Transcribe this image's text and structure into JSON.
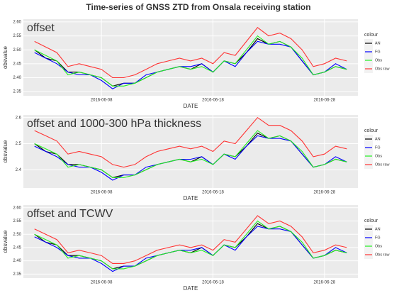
{
  "title": "Time-series of GNSS ZTD from Onsala receiving station",
  "chart_data": [
    {
      "type": "line",
      "annotation": "offset",
      "x_label": "DATE",
      "y_label": "obsvalue",
      "legend_title": "colour",
      "grid": true,
      "x": [
        "2016-06-02",
        "2016-06-03",
        "2016-06-04",
        "2016-06-05",
        "2016-06-06",
        "2016-06-07",
        "2016-06-08",
        "2016-06-09",
        "2016-06-10",
        "2016-06-11",
        "2016-06-12",
        "2016-06-13",
        "2016-06-14",
        "2016-06-15",
        "2016-06-16",
        "2016-06-17",
        "2016-06-18",
        "2016-06-19",
        "2016-06-20",
        "2016-06-21",
        "2016-06-22",
        "2016-06-23",
        "2016-06-24",
        "2016-06-25",
        "2016-06-26",
        "2016-06-27",
        "2016-06-28",
        "2016-06-29",
        "2016-06-30"
      ],
      "xlim": [
        "2016-06-01",
        "2016-07-01"
      ],
      "xticks": [
        "2016-06-08",
        "2016-06-18",
        "2016-06-28"
      ],
      "ylim": [
        2.335,
        2.61
      ],
      "yticks": [
        2.35,
        {
          "value": 2.4,
          "label": "2.40"
        },
        2.45,
        {
          "value": 2.5,
          "label": "2.50"
        },
        2.55,
        {
          "value": 2.6,
          "label": "2.60"
        }
      ],
      "series": [
        {
          "name": "AN",
          "color": "#000000",
          "values": [
            2.5,
            2.47,
            2.46,
            2.42,
            2.42,
            2.41,
            2.4,
            2.37,
            2.38,
            2.38,
            2.4,
            2.42,
            2.43,
            2.44,
            2.43,
            2.45,
            2.42,
            2.46,
            2.45,
            2.49,
            2.54,
            2.52,
            2.53,
            2.51,
            2.46,
            2.41,
            2.42,
            2.44,
            2.43
          ]
        },
        {
          "name": "FG",
          "color": "#0000ff",
          "values": [
            2.49,
            2.47,
            2.45,
            2.42,
            2.41,
            2.41,
            2.39,
            2.36,
            2.38,
            2.38,
            2.41,
            2.42,
            2.43,
            2.44,
            2.44,
            2.45,
            2.42,
            2.46,
            2.44,
            2.49,
            2.53,
            2.52,
            2.52,
            2.51,
            2.46,
            2.41,
            2.42,
            2.45,
            2.43
          ]
        },
        {
          "name": "Obs",
          "color": "#22ee22",
          "values": [
            2.5,
            2.48,
            2.46,
            2.41,
            2.42,
            2.41,
            2.4,
            2.37,
            2.37,
            2.38,
            2.4,
            2.42,
            2.43,
            2.44,
            2.43,
            2.44,
            2.42,
            2.46,
            2.45,
            2.5,
            2.55,
            2.52,
            2.53,
            2.51,
            2.47,
            2.41,
            2.42,
            2.44,
            2.43
          ]
        },
        {
          "name": "Obs raw",
          "color": "#ff3333",
          "values": [
            2.53,
            2.51,
            2.49,
            2.44,
            2.45,
            2.44,
            2.43,
            2.4,
            2.4,
            2.41,
            2.43,
            2.45,
            2.46,
            2.47,
            2.46,
            2.47,
            2.45,
            2.49,
            2.48,
            2.53,
            2.58,
            2.55,
            2.56,
            2.54,
            2.5,
            2.44,
            2.45,
            2.47,
            2.46
          ]
        }
      ]
    },
    {
      "type": "line",
      "annotation": "offset  and 1000-300 hPa thickness",
      "x_label": "DATE",
      "y_label": "obsvalue",
      "legend_title": "colour",
      "grid": true,
      "x": [
        "2016-06-02",
        "2016-06-03",
        "2016-06-04",
        "2016-06-05",
        "2016-06-06",
        "2016-06-07",
        "2016-06-08",
        "2016-06-09",
        "2016-06-10",
        "2016-06-11",
        "2016-06-12",
        "2016-06-13",
        "2016-06-14",
        "2016-06-15",
        "2016-06-16",
        "2016-06-17",
        "2016-06-18",
        "2016-06-19",
        "2016-06-20",
        "2016-06-21",
        "2016-06-22",
        "2016-06-23",
        "2016-06-24",
        "2016-06-25",
        "2016-06-26",
        "2016-06-27",
        "2016-06-28",
        "2016-06-29",
        "2016-06-30"
      ],
      "xlim": [
        "2016-06-01",
        "2016-07-01"
      ],
      "xticks": [
        "2016-06-08",
        "2016-06-18",
        "2016-06-28"
      ],
      "ylim": [
        2.33,
        2.61
      ],
      "yticks": [
        2.4,
        2.5,
        2.6
      ],
      "series": [
        {
          "name": "AN",
          "color": "#000000",
          "values": [
            2.5,
            2.47,
            2.46,
            2.42,
            2.42,
            2.41,
            2.4,
            2.37,
            2.38,
            2.38,
            2.4,
            2.42,
            2.43,
            2.44,
            2.43,
            2.45,
            2.42,
            2.46,
            2.45,
            2.49,
            2.54,
            2.52,
            2.53,
            2.51,
            2.46,
            2.41,
            2.42,
            2.44,
            2.43
          ]
        },
        {
          "name": "FG",
          "color": "#0000ff",
          "values": [
            2.49,
            2.47,
            2.45,
            2.42,
            2.41,
            2.41,
            2.39,
            2.36,
            2.38,
            2.38,
            2.41,
            2.42,
            2.43,
            2.44,
            2.44,
            2.45,
            2.42,
            2.46,
            2.44,
            2.49,
            2.53,
            2.52,
            2.52,
            2.51,
            2.46,
            2.41,
            2.42,
            2.45,
            2.43
          ]
        },
        {
          "name": "Obs",
          "color": "#22ee22",
          "values": [
            2.5,
            2.48,
            2.46,
            2.41,
            2.42,
            2.41,
            2.4,
            2.37,
            2.37,
            2.38,
            2.4,
            2.42,
            2.43,
            2.44,
            2.43,
            2.44,
            2.42,
            2.46,
            2.45,
            2.5,
            2.55,
            2.52,
            2.53,
            2.51,
            2.47,
            2.41,
            2.42,
            2.44,
            2.43
          ]
        },
        {
          "name": "Obs raw",
          "color": "#ff3333",
          "values": [
            2.55,
            2.53,
            2.51,
            2.46,
            2.47,
            2.46,
            2.45,
            2.42,
            2.41,
            2.42,
            2.45,
            2.47,
            2.48,
            2.49,
            2.48,
            2.49,
            2.47,
            2.51,
            2.5,
            2.55,
            2.6,
            2.57,
            2.57,
            2.55,
            2.51,
            2.45,
            2.46,
            2.49,
            2.48
          ]
        }
      ]
    },
    {
      "type": "line",
      "annotation": "offset and TCWV",
      "x_label": "DATE",
      "y_label": "obsvalue",
      "legend_title": "colour",
      "grid": true,
      "x": [
        "2016-06-02",
        "2016-06-03",
        "2016-06-04",
        "2016-06-05",
        "2016-06-06",
        "2016-06-07",
        "2016-06-08",
        "2016-06-09",
        "2016-06-10",
        "2016-06-11",
        "2016-06-12",
        "2016-06-13",
        "2016-06-14",
        "2016-06-15",
        "2016-06-16",
        "2016-06-17",
        "2016-06-18",
        "2016-06-19",
        "2016-06-20",
        "2016-06-21",
        "2016-06-22",
        "2016-06-23",
        "2016-06-24",
        "2016-06-25",
        "2016-06-26",
        "2016-06-27",
        "2016-06-28",
        "2016-06-29",
        "2016-06-30"
      ],
      "xlim": [
        "2016-06-01",
        "2016-07-01"
      ],
      "xticks": [
        "2016-06-08",
        "2016-06-18",
        "2016-06-28"
      ],
      "ylim": [
        2.335,
        2.61
      ],
      "yticks": [
        2.35,
        {
          "value": 2.4,
          "label": "2.40"
        },
        2.45,
        {
          "value": 2.5,
          "label": "2.50"
        },
        2.55,
        {
          "value": 2.6,
          "label": "2.60"
        }
      ],
      "series": [
        {
          "name": "AN",
          "color": "#000000",
          "values": [
            2.5,
            2.47,
            2.46,
            2.42,
            2.42,
            2.41,
            2.4,
            2.37,
            2.38,
            2.38,
            2.4,
            2.42,
            2.43,
            2.44,
            2.43,
            2.45,
            2.42,
            2.46,
            2.45,
            2.49,
            2.54,
            2.52,
            2.53,
            2.51,
            2.46,
            2.41,
            2.42,
            2.44,
            2.43
          ]
        },
        {
          "name": "FG",
          "color": "#0000ff",
          "values": [
            2.49,
            2.47,
            2.45,
            2.42,
            2.41,
            2.41,
            2.39,
            2.36,
            2.38,
            2.38,
            2.41,
            2.42,
            2.43,
            2.44,
            2.44,
            2.45,
            2.42,
            2.46,
            2.44,
            2.49,
            2.53,
            2.52,
            2.52,
            2.51,
            2.46,
            2.41,
            2.42,
            2.45,
            2.43
          ]
        },
        {
          "name": "Obs",
          "color": "#22ee22",
          "values": [
            2.5,
            2.48,
            2.46,
            2.41,
            2.42,
            2.41,
            2.4,
            2.37,
            2.37,
            2.38,
            2.4,
            2.42,
            2.43,
            2.44,
            2.43,
            2.44,
            2.42,
            2.46,
            2.45,
            2.5,
            2.55,
            2.52,
            2.53,
            2.51,
            2.47,
            2.41,
            2.42,
            2.44,
            2.43
          ]
        },
        {
          "name": "Obs raw",
          "color": "#ff3333",
          "values": [
            2.52,
            2.5,
            2.48,
            2.43,
            2.44,
            2.43,
            2.42,
            2.39,
            2.39,
            2.4,
            2.42,
            2.44,
            2.45,
            2.46,
            2.45,
            2.46,
            2.44,
            2.48,
            2.47,
            2.52,
            2.57,
            2.54,
            2.55,
            2.53,
            2.49,
            2.43,
            2.44,
            2.46,
            2.45
          ]
        }
      ]
    }
  ]
}
